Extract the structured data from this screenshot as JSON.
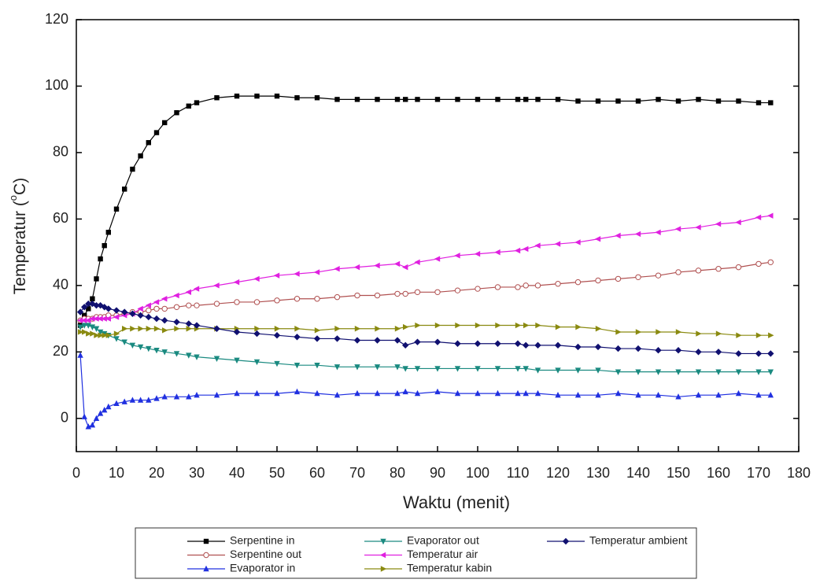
{
  "chart_data": {
    "type": "line",
    "xlabel": "Waktu (menit)",
    "ylabel_parts": [
      "Temperatur (",
      "o",
      "C)"
    ],
    "x": [
      1,
      2,
      3,
      4,
      5,
      6,
      7,
      8,
      10,
      12,
      14,
      16,
      18,
      20,
      22,
      25,
      28,
      30,
      35,
      40,
      45,
      50,
      55,
      60,
      65,
      70,
      75,
      80,
      82,
      85,
      90,
      95,
      100,
      105,
      110,
      112,
      115,
      120,
      125,
      130,
      135,
      140,
      145,
      150,
      155,
      160,
      165,
      170,
      173
    ],
    "xlim": [
      0,
      180
    ],
    "xticks": [
      0,
      10,
      20,
      30,
      40,
      50,
      60,
      70,
      80,
      90,
      100,
      110,
      120,
      130,
      140,
      150,
      160,
      170,
      180
    ],
    "ylim": [
      -10,
      120
    ],
    "yticks": [
      0,
      20,
      40,
      60,
      80,
      100,
      120
    ],
    "series": [
      {
        "name": "Serpentine in",
        "color": "#000000",
        "marker": "square",
        "values": [
          28,
          31,
          33,
          36,
          42,
          48,
          52,
          56,
          63,
          69,
          75,
          79,
          83,
          86,
          89,
          92,
          94,
          95,
          96.5,
          97,
          97,
          97,
          96.5,
          96.5,
          96,
          96,
          96,
          96,
          96,
          96,
          96,
          96,
          96,
          96,
          96,
          96,
          96,
          96,
          95.5,
          95.5,
          95.5,
          95.5,
          96,
          95.5,
          96,
          95.5,
          95.5,
          95,
          95
        ]
      },
      {
        "name": "Serpentine out",
        "color": "#b05050",
        "marker": "circle-open",
        "values": [
          29.5,
          30,
          30,
          30,
          30.5,
          30.5,
          30.5,
          31,
          31,
          31.5,
          32,
          32,
          32.5,
          33,
          33,
          33.5,
          34,
          34,
          34.5,
          35,
          35,
          35.5,
          36,
          36,
          36.5,
          37,
          37,
          37.5,
          37.5,
          38,
          38,
          38.5,
          39,
          39.5,
          39.5,
          40,
          40,
          40.5,
          41,
          41.5,
          42,
          42.5,
          43,
          44,
          44.5,
          45,
          45.5,
          46.5,
          47
        ]
      },
      {
        "name": "Evaporator in",
        "color": "#2030e0",
        "marker": "triangle-up",
        "values": [
          19,
          0.5,
          -2.5,
          -2,
          0,
          1.5,
          2.5,
          3.5,
          4.5,
          5,
          5.5,
          5.5,
          5.5,
          6,
          6.5,
          6.5,
          6.5,
          7,
          7,
          7.5,
          7.5,
          7.5,
          8,
          7.5,
          7,
          7.5,
          7.5,
          7.5,
          8,
          7.5,
          8,
          7.5,
          7.5,
          7.5,
          7.5,
          7.5,
          7.5,
          7,
          7,
          7,
          7.5,
          7,
          7,
          6.5,
          7,
          7,
          7.5,
          7,
          7
        ]
      },
      {
        "name": "Evaporator out",
        "color": "#1a8a80",
        "marker": "triangle-down",
        "values": [
          27.5,
          28,
          28,
          27.5,
          27,
          26,
          25.5,
          25,
          24,
          23,
          22,
          21.5,
          21,
          20.5,
          20,
          19.5,
          19,
          18.5,
          18,
          17.5,
          17,
          16.5,
          16,
          16,
          15.5,
          15.5,
          15.5,
          15.5,
          15,
          15,
          15,
          15,
          15,
          15,
          15,
          15,
          14.5,
          14.5,
          14.5,
          14.5,
          14,
          14,
          14,
          14,
          14,
          14,
          14,
          14,
          14
        ]
      },
      {
        "name": "Temperatur air",
        "color": "#e020e0",
        "marker": "triangle-left",
        "values": [
          29.5,
          29.5,
          29.5,
          30,
          30,
          30,
          30,
          30,
          30.5,
          31,
          31.5,
          33,
          34,
          35,
          36,
          37,
          38,
          39,
          40,
          41,
          42,
          43,
          43.5,
          44,
          45,
          45.5,
          46,
          46.5,
          45.5,
          47,
          48,
          49,
          49.5,
          50,
          50.5,
          51,
          52,
          52.5,
          53,
          54,
          55,
          55.5,
          56,
          57,
          57.5,
          58.5,
          59,
          60.5,
          61
        ]
      },
      {
        "name": "Temperatur kabin",
        "color": "#8a8a10",
        "marker": "triangle-right",
        "values": [
          26,
          26,
          25.5,
          25.5,
          25,
          25,
          25,
          25,
          25.5,
          27,
          27,
          27,
          27,
          27,
          26.5,
          27,
          27,
          27,
          27,
          27,
          27,
          27,
          27,
          26.5,
          27,
          27,
          27,
          27,
          27.5,
          28,
          28,
          28,
          28,
          28,
          28,
          28,
          28,
          27.5,
          27.5,
          27,
          26,
          26,
          26,
          26,
          25.5,
          25.5,
          25,
          25,
          25
        ]
      },
      {
        "name": "Temperatur ambient",
        "color": "#101070",
        "marker": "diamond",
        "values": [
          32,
          33.5,
          34.5,
          34.5,
          34,
          34,
          33.5,
          33,
          32.5,
          32,
          31.5,
          31,
          30.5,
          30,
          29.5,
          29,
          28.5,
          28,
          27,
          26,
          25.5,
          25,
          24.5,
          24,
          24,
          23.5,
          23.5,
          23.5,
          22,
          23,
          23,
          22.5,
          22.5,
          22.5,
          22.5,
          22,
          22,
          22,
          21.5,
          21.5,
          21,
          21,
          20.5,
          20.5,
          20,
          20,
          19.5,
          19.5,
          19.5
        ]
      }
    ]
  }
}
